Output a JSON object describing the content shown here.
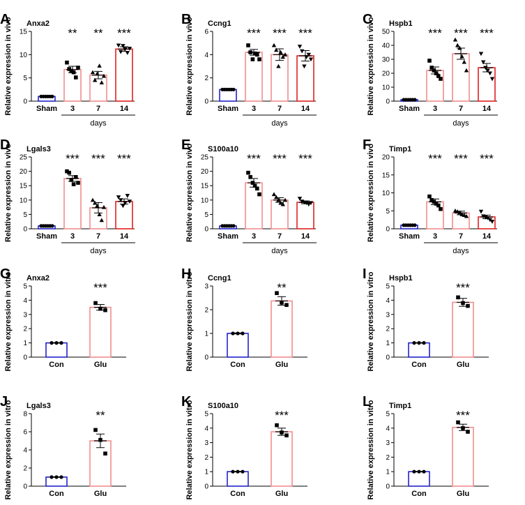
{
  "figure": {
    "days_label": "days"
  },
  "chart_data": [
    {
      "type": "bar",
      "letter": "A",
      "gene": "Anxa2",
      "ylabel": "Relative  expression in vivo",
      "ylim": [
        0,
        15
      ],
      "yticks": [
        0,
        5,
        10,
        15
      ],
      "categories": [
        "Sham",
        "3",
        "7",
        "14"
      ],
      "group_label": "days",
      "values": [
        1,
        6.8,
        5.6,
        11.2
      ],
      "errors": [
        0.05,
        0.7,
        0.8,
        0.5
      ],
      "significance": [
        "",
        "**",
        "**",
        "***"
      ],
      "bar_colors": [
        "#2222cc",
        "#f28e8e",
        "#f28e8e",
        "#e02020"
      ],
      "markers": [
        "circle",
        "square",
        "triangle",
        "down-triangle"
      ],
      "points": [
        [
          1,
          1,
          1,
          1,
          1,
          1
        ],
        [
          8.3,
          6.9,
          6.5,
          6.2,
          5.1,
          7.2
        ],
        [
          6.2,
          4.5,
          5.9,
          7.6,
          4.0,
          5.4
        ],
        [
          12.0,
          10.6,
          11.9,
          11.2,
          10.4,
          11.3
        ]
      ]
    },
    {
      "type": "bar",
      "letter": "B",
      "gene": "Ccng1",
      "ylabel": "Relative  expression in vivo",
      "ylim": [
        0,
        6
      ],
      "yticks": [
        0,
        2,
        4,
        6
      ],
      "categories": [
        "Sham",
        "3",
        "7",
        "14"
      ],
      "group_label": "days",
      "values": [
        1,
        4.2,
        4.0,
        3.9
      ],
      "errors": [
        0.02,
        0.25,
        0.5,
        0.45
      ],
      "significance": [
        "",
        "***",
        "***",
        "***"
      ],
      "bar_colors": [
        "#2222cc",
        "#f28e8e",
        "#f28e8e",
        "#e02020"
      ],
      "markers": [
        "circle",
        "square",
        "triangle",
        "down-triangle"
      ],
      "points": [
        [
          1,
          1,
          1,
          1,
          1,
          1
        ],
        [
          4.8,
          4.2,
          3.6,
          4.1,
          4.0,
          3.6
        ],
        [
          4.8,
          4.4,
          3.0,
          4.2,
          3.8,
          4.0
        ],
        [
          4.7,
          4.3,
          3.0,
          3.8,
          4.0,
          3.6
        ]
      ]
    },
    {
      "type": "bar",
      "letter": "C",
      "gene": "Hspb1",
      "ylabel": "Relative  expression in vivo",
      "ylim": [
        0,
        50
      ],
      "yticks": [
        0,
        10,
        20,
        30,
        40,
        50
      ],
      "categories": [
        "Sham",
        "3",
        "7",
        "14"
      ],
      "group_label": "days",
      "values": [
        1,
        22,
        34,
        24
      ],
      "errors": [
        0.1,
        2.5,
        4,
        3
      ],
      "significance": [
        "",
        "***",
        "***",
        "***"
      ],
      "bar_colors": [
        "#2222cc",
        "#f28e8e",
        "#f28e8e",
        "#e02020"
      ],
      "markers": [
        "circle",
        "square",
        "triangle",
        "down-triangle"
      ],
      "points": [
        [
          1,
          1,
          1,
          1,
          1,
          1
        ],
        [
          29,
          24,
          22,
          20,
          18,
          16
        ],
        [
          44,
          40,
          38,
          32,
          28,
          22
        ],
        [
          34,
          28,
          24,
          22,
          20,
          16
        ]
      ]
    },
    {
      "type": "bar",
      "letter": "D",
      "gene": "Lgals3",
      "ylabel": "Relative  expression in vivo",
      "ylim": [
        0,
        25
      ],
      "yticks": [
        0,
        5,
        10,
        15,
        20,
        25
      ],
      "categories": [
        "Sham",
        "3",
        "7",
        "14"
      ],
      "group_label": "days",
      "values": [
        1,
        17.5,
        7.3,
        9.5
      ],
      "errors": [
        0.05,
        1.0,
        1.8,
        0.9
      ],
      "significance": [
        "",
        "***",
        "***",
        "***"
      ],
      "bar_colors": [
        "#2222cc",
        "#f28e8e",
        "#f28e8e",
        "#e02020"
      ],
      "markers": [
        "circle",
        "square",
        "triangle",
        "down-triangle"
      ],
      "points": [
        [
          1,
          1,
          1,
          1,
          1,
          1
        ],
        [
          20,
          19.5,
          17,
          15.5,
          18,
          16
        ],
        [
          10,
          9,
          8,
          5,
          3,
          7.5
        ],
        [
          11,
          10,
          8,
          9,
          11.5,
          9.5
        ]
      ]
    },
    {
      "type": "bar",
      "letter": "E",
      "gene": "S100a10",
      "ylabel": "Relative  expression in vivo",
      "ylim": [
        0,
        25
      ],
      "yticks": [
        0,
        5,
        10,
        15,
        20,
        25
      ],
      "categories": [
        "Sham",
        "3",
        "7",
        "14"
      ],
      "group_label": "days",
      "values": [
        1,
        16,
        10,
        9.2
      ],
      "errors": [
        0.05,
        1.5,
        0.8,
        0.5
      ],
      "significance": [
        "",
        "***",
        "***",
        "***"
      ],
      "bar_colors": [
        "#2222cc",
        "#f28e8e",
        "#f28e8e",
        "#e02020"
      ],
      "markers": [
        "circle",
        "square",
        "triangle",
        "down-triangle"
      ],
      "points": [
        [
          1,
          1,
          1,
          1,
          1,
          1
        ],
        [
          19.5,
          18,
          16,
          15,
          14,
          12
        ],
        [
          12,
          11,
          10,
          9,
          8.5,
          10
        ],
        [
          10.5,
          9.5,
          9.2,
          9,
          8.5,
          9
        ]
      ]
    },
    {
      "type": "bar",
      "letter": "F",
      "gene": "Timp1",
      "ylabel": "Relative  expression in vivo",
      "ylim": [
        0,
        20
      ],
      "yticks": [
        0,
        5,
        10,
        15,
        20
      ],
      "categories": [
        "Sham",
        "3",
        "7",
        "14"
      ],
      "group_label": "days",
      "values": [
        1,
        7.5,
        4.4,
        3.3
      ],
      "errors": [
        0.05,
        0.8,
        0.5,
        0.5
      ],
      "significance": [
        "",
        "***",
        "***",
        "***"
      ],
      "bar_colors": [
        "#2222cc",
        "#f28e8e",
        "#f28e8e",
        "#e02020"
      ],
      "markers": [
        "circle",
        "square",
        "triangle",
        "down-triangle"
      ],
      "points": [
        [
          1,
          1,
          1,
          1,
          1,
          1
        ],
        [
          9,
          8,
          7.5,
          7,
          6.5,
          5.5
        ],
        [
          5,
          4.8,
          4.5,
          4,
          3.8,
          3.5
        ],
        [
          4.8,
          3.5,
          3.2,
          3,
          2.5,
          2
        ]
      ]
    },
    {
      "type": "bar",
      "letter": "G",
      "gene": "Anxa2",
      "ylabel": "Relative expression in vitro",
      "ylim": [
        0,
        5
      ],
      "yticks": [
        0,
        1,
        2,
        3,
        4,
        5
      ],
      "categories": [
        "Con",
        "Glu"
      ],
      "values": [
        1,
        3.5
      ],
      "errors": [
        0.02,
        0.2
      ],
      "significance": [
        "",
        "***"
      ],
      "bar_colors": [
        "#2222cc",
        "#f28e8e"
      ],
      "markers": [
        "circle",
        "square"
      ],
      "points": [
        [
          1,
          1,
          1
        ],
        [
          3.8,
          3.4,
          3.3
        ]
      ]
    },
    {
      "type": "bar",
      "letter": "H",
      "gene": "Ccng1",
      "ylabel": "Relative expression in vitro",
      "ylim": [
        0,
        3
      ],
      "yticks": [
        0,
        1,
        2,
        3
      ],
      "categories": [
        "Con",
        "Glu"
      ],
      "values": [
        1,
        2.37
      ],
      "errors": [
        0.02,
        0.18
      ],
      "significance": [
        "",
        "**"
      ],
      "bar_colors": [
        "#2222cc",
        "#f28e8e"
      ],
      "markers": [
        "circle",
        "square"
      ],
      "points": [
        [
          1,
          1,
          1
        ],
        [
          2.7,
          2.3,
          2.2
        ]
      ]
    },
    {
      "type": "bar",
      "letter": "I",
      "gene": "Hspb1",
      "ylabel": "Relative expression in vitro",
      "ylim": [
        0,
        5
      ],
      "yticks": [
        0,
        1,
        2,
        3,
        4,
        5
      ],
      "categories": [
        "Con",
        "Glu"
      ],
      "values": [
        1,
        3.85
      ],
      "errors": [
        0.02,
        0.28
      ],
      "significance": [
        "",
        "***"
      ],
      "bar_colors": [
        "#2222cc",
        "#f28e8e"
      ],
      "markers": [
        "circle",
        "square"
      ],
      "points": [
        [
          1,
          1,
          1
        ],
        [
          4.2,
          3.8,
          3.6
        ]
      ]
    },
    {
      "type": "bar",
      "letter": "J",
      "gene": "Lgals3",
      "ylabel": "Relative expression in vitro",
      "ylim": [
        0,
        8
      ],
      "yticks": [
        0,
        2,
        4,
        6,
        8
      ],
      "categories": [
        "Con",
        "Glu"
      ],
      "values": [
        1,
        5.0
      ],
      "errors": [
        0.02,
        0.75
      ],
      "significance": [
        "",
        "**"
      ],
      "bar_colors": [
        "#2222cc",
        "#f28e8e"
      ],
      "markers": [
        "circle",
        "square"
      ],
      "points": [
        [
          1,
          1,
          1
        ],
        [
          6.2,
          5.1,
          3.6
        ]
      ]
    },
    {
      "type": "bar",
      "letter": "K",
      "gene": "S100a10",
      "ylabel": "Relative expression in vitro",
      "ylim": [
        0,
        5
      ],
      "yticks": [
        0,
        1,
        2,
        3,
        4,
        5
      ],
      "categories": [
        "Con",
        "Glu"
      ],
      "values": [
        1,
        3.75
      ],
      "errors": [
        0.02,
        0.25
      ],
      "significance": [
        "",
        "***"
      ],
      "bar_colors": [
        "#2222cc",
        "#f28e8e"
      ],
      "markers": [
        "circle",
        "square"
      ],
      "points": [
        [
          1,
          1,
          1
        ],
        [
          4.2,
          3.7,
          3.5
        ]
      ]
    },
    {
      "type": "bar",
      "letter": "L",
      "gene": "Timp1",
      "ylabel": "Relative expression in vitro",
      "ylim": [
        0,
        5
      ],
      "yticks": [
        0,
        1,
        2,
        3,
        4,
        5
      ],
      "categories": [
        "Con",
        "Glu"
      ],
      "values": [
        1,
        4.05
      ],
      "errors": [
        0.02,
        0.22
      ],
      "significance": [
        "",
        "***"
      ],
      "bar_colors": [
        "#2222cc",
        "#f28e8e"
      ],
      "markers": [
        "circle",
        "square"
      ],
      "points": [
        [
          1,
          1,
          1
        ],
        [
          4.4,
          4.0,
          3.75
        ]
      ]
    }
  ]
}
